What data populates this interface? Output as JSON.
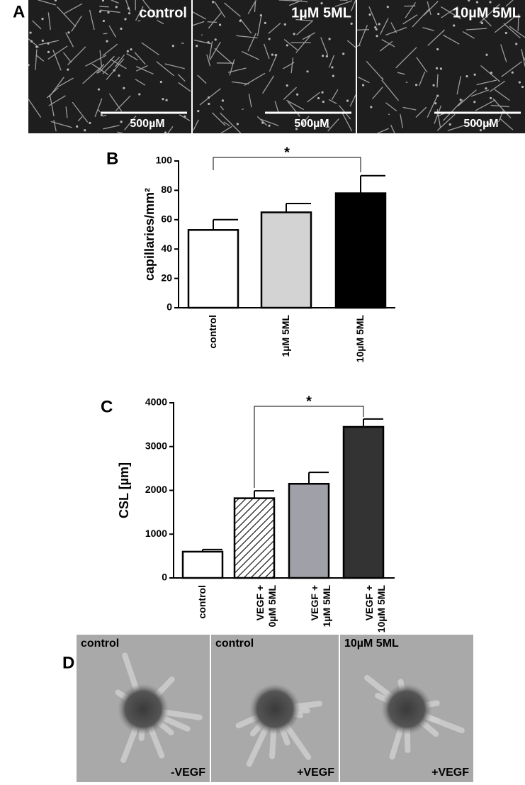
{
  "panels": {
    "A": {
      "label": "A",
      "images": [
        {
          "caption": "control",
          "scale": "500µM"
        },
        {
          "caption": "1µM 5ML",
          "scale": "500µM"
        },
        {
          "caption": "10µM 5ML",
          "scale": "500µM"
        }
      ]
    },
    "D": {
      "label": "D",
      "images": [
        {
          "caption": "control",
          "condition": "-VEGF"
        },
        {
          "caption": "control",
          "condition": "+VEGF"
        },
        {
          "caption": "10µM 5ML",
          "condition": "+VEGF"
        }
      ]
    }
  },
  "chart_data": [
    {
      "type": "bar",
      "panel_label": "B",
      "ylabel": "capillaries/mm²",
      "categories": [
        [
          "control"
        ],
        [
          "1µM 5ML"
        ],
        [
          "10µM 5ML"
        ]
      ],
      "values": [
        53,
        65,
        78
      ],
      "errors": [
        7,
        6,
        12
      ],
      "colors": [
        "#ffffff",
        "#d3d3d3",
        "#000000"
      ],
      "hatch": [
        false,
        false,
        false
      ],
      "ylim": [
        0,
        100
      ],
      "yticks": [
        0,
        20,
        40,
        60,
        80,
        100
      ],
      "significance": {
        "between": [
          0,
          2
        ],
        "label": "*"
      }
    },
    {
      "type": "bar",
      "panel_label": "C",
      "ylabel": "CSL [µm]",
      "categories": [
        [
          "control"
        ],
        [
          "VEGF +",
          "0µM 5ML"
        ],
        [
          "VEGF +",
          "1µM 5ML"
        ],
        [
          "VEGF +",
          "10µM 5ML"
        ]
      ],
      "values": [
        600,
        1820,
        2150,
        3450
      ],
      "errors": [
        50,
        170,
        260,
        180
      ],
      "colors": [
        "#ffffff",
        "#ffffff",
        "#a0a0a8",
        "#333333"
      ],
      "hatch": [
        false,
        true,
        false,
        false
      ],
      "ylim": [
        0,
        4000
      ],
      "yticks": [
        0,
        1000,
        2000,
        3000,
        4000
      ],
      "significance": {
        "between": [
          1,
          3
        ],
        "label": "*"
      }
    }
  ]
}
